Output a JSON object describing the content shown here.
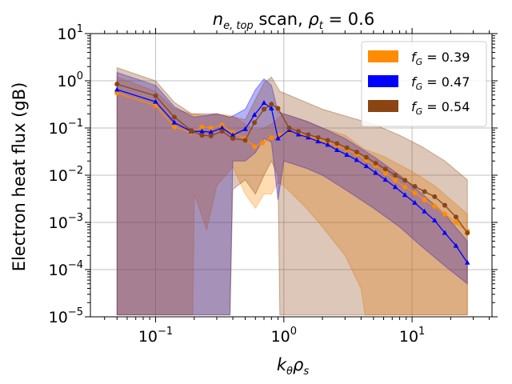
{
  "chart_data": {
    "type": "line",
    "title_prefix": "n",
    "title_sub": "e, top",
    "title_mid": " scan, ",
    "title_rho": "ρ",
    "title_rho_sub": "t",
    "title_suffix": " = 0.6",
    "xlabel_main": "k",
    "xlabel_sub1": "θ",
    "xlabel_mid": "ρ",
    "xlabel_sub2": "s",
    "ylabel": "Electron heat flux (gB)",
    "x_scale": "log",
    "y_scale": "log",
    "xlim": [
      0.031,
      42
    ],
    "ylim": [
      1e-05,
      10
    ],
    "grid": true,
    "legend_position": "top-right",
    "x_ticks": [
      {
        "value": 0.1,
        "base": "10",
        "exp": "−1"
      },
      {
        "value": 1,
        "base": "10",
        "exp": "0"
      },
      {
        "value": 10,
        "base": "10",
        "exp": "1"
      }
    ],
    "y_ticks": [
      {
        "value": 1e-05,
        "base": "10",
        "exp": "−5"
      },
      {
        "value": 0.0001,
        "base": "10",
        "exp": "−4"
      },
      {
        "value": 0.001,
        "base": "10",
        "exp": "−3"
      },
      {
        "value": 0.01,
        "base": "10",
        "exp": "−2"
      },
      {
        "value": 0.1,
        "base": "10",
        "exp": "−1"
      },
      {
        "value": 1,
        "base": "10",
        "exp": "0"
      },
      {
        "value": 10,
        "base": "10",
        "exp": "1"
      }
    ],
    "series": [
      {
        "name_prefix": "f",
        "name_sub": "G",
        "name_value": " = 0.39",
        "color": "#ff8c00",
        "marker": "circle",
        "points": [
          [
            0.05,
            0.55
          ],
          [
            0.1,
            0.3
          ],
          [
            0.14,
            0.105
          ],
          [
            0.19,
            0.08
          ],
          [
            0.23,
            0.105
          ],
          [
            0.27,
            0.1
          ],
          [
            0.33,
            0.115
          ],
          [
            0.4,
            0.08
          ],
          [
            0.5,
            0.06
          ],
          [
            0.59,
            0.04
          ],
          [
            0.68,
            0.048
          ],
          [
            0.8,
            0.062
          ],
          [
            0.92,
            0.07
          ],
          [
            1.1,
            0.085
          ],
          [
            1.3,
            0.076
          ],
          [
            1.55,
            0.066
          ],
          [
            1.85,
            0.058
          ],
          [
            2.2,
            0.05
          ],
          [
            2.6,
            0.042
          ],
          [
            3.1,
            0.035
          ],
          [
            3.7,
            0.028
          ],
          [
            4.4,
            0.021
          ],
          [
            5.2,
            0.016
          ],
          [
            6.2,
            0.011
          ],
          [
            7.4,
            0.0078
          ],
          [
            8.8,
            0.0056
          ],
          [
            10.5,
            0.0042
          ],
          [
            12.5,
            0.003
          ],
          [
            15,
            0.0022
          ],
          [
            18,
            0.0015
          ],
          [
            22,
            0.001
          ],
          [
            27,
            0.00065
          ]
        ],
        "band": [
          [
            0.05,
            1.1e-05,
            1.2
          ],
          [
            0.1,
            1.1e-05,
            0.6
          ],
          [
            0.14,
            1.1e-05,
            0.25
          ],
          [
            0.195,
            1.1e-05,
            0.2
          ],
          [
            0.2,
            0.004,
            0.2
          ],
          [
            0.25,
            0.0007,
            0.18
          ],
          [
            0.3,
            0.006,
            0.2
          ],
          [
            0.4,
            0.015,
            0.18
          ],
          [
            0.5,
            0.004,
            0.12
          ],
          [
            0.6,
            0.002,
            0.09
          ],
          [
            0.7,
            0.004,
            0.1
          ],
          [
            0.8,
            0.004,
            0.12
          ],
          [
            0.9,
            0.007,
            0.16
          ],
          [
            1.0,
            0.006,
            0.2
          ],
          [
            1.5,
            0.002,
            0.14
          ],
          [
            2.0,
            0.0008,
            0.1
          ],
          [
            3.0,
            0.0002,
            0.07
          ],
          [
            4.0,
            4e-05,
            0.04
          ],
          [
            4.3,
            1.1e-05,
            0.035
          ],
          [
            6.0,
            1.1e-05,
            0.025
          ],
          [
            10.0,
            1.1e-05,
            0.012
          ],
          [
            15.0,
            1.1e-05,
            0.006
          ],
          [
            27.0,
            1.1e-05,
            0.0015
          ]
        ]
      },
      {
        "name_prefix": "f",
        "name_sub": "G",
        "name_value": " = 0.47",
        "color": "#0000ff",
        "marker": "triangle",
        "points": [
          [
            0.05,
            0.65
          ],
          [
            0.1,
            0.36
          ],
          [
            0.14,
            0.13
          ],
          [
            0.19,
            0.085
          ],
          [
            0.23,
            0.085
          ],
          [
            0.27,
            0.082
          ],
          [
            0.33,
            0.1
          ],
          [
            0.4,
            0.07
          ],
          [
            0.5,
            0.095
          ],
          [
            0.59,
            0.19
          ],
          [
            0.7,
            0.34
          ],
          [
            0.8,
            0.26
          ],
          [
            0.9,
            0.06
          ],
          [
            1.1,
            0.09
          ],
          [
            1.3,
            0.073
          ],
          [
            1.55,
            0.063
          ],
          [
            1.85,
            0.052
          ],
          [
            2.2,
            0.044
          ],
          [
            2.6,
            0.034
          ],
          [
            3.1,
            0.027
          ],
          [
            3.7,
            0.021
          ],
          [
            4.4,
            0.0155
          ],
          [
            5.2,
            0.0112
          ],
          [
            6.2,
            0.008
          ],
          [
            7.4,
            0.0056
          ],
          [
            8.8,
            0.0038
          ],
          [
            10.5,
            0.0026
          ],
          [
            12.5,
            0.0017
          ],
          [
            15,
            0.0011
          ],
          [
            18,
            0.0006
          ],
          [
            22,
            0.00032
          ],
          [
            27,
            0.00014
          ]
        ],
        "band": [
          [
            0.05,
            1.1e-05,
            1.5
          ],
          [
            0.1,
            1.1e-05,
            0.8
          ],
          [
            0.14,
            1.1e-05,
            0.28
          ],
          [
            0.19,
            1.1e-05,
            0.18
          ],
          [
            0.2,
            1.1e-05,
            0.17
          ],
          [
            0.3,
            1.1e-05,
            0.2
          ],
          [
            0.38,
            1.1e-05,
            0.17
          ],
          [
            0.4,
            0.02,
            0.18
          ],
          [
            0.5,
            0.02,
            0.25
          ],
          [
            0.6,
            0.03,
            0.65
          ],
          [
            0.7,
            0.06,
            1.1
          ],
          [
            0.8,
            0.05,
            0.8
          ],
          [
            0.9,
            0.003,
            0.22
          ],
          [
            1.0,
            0.02,
            0.2
          ],
          [
            1.5,
            0.014,
            0.14
          ],
          [
            2.0,
            0.01,
            0.1
          ],
          [
            3.0,
            0.005,
            0.06
          ],
          [
            5.0,
            0.002,
            0.025
          ],
          [
            8.0,
            0.0008,
            0.01
          ],
          [
            12.0,
            0.0003,
            0.004
          ],
          [
            18.0,
            0.00012,
            0.0015
          ],
          [
            27.0,
            5e-05,
            0.0004
          ]
        ]
      },
      {
        "name_prefix": "f",
        "name_sub": "G",
        "name_value": " = 0.54",
        "color": "#8b4513",
        "marker": "circle",
        "points": [
          [
            0.05,
            0.85
          ],
          [
            0.1,
            0.48
          ],
          [
            0.14,
            0.17
          ],
          [
            0.19,
            0.088
          ],
          [
            0.23,
            0.07
          ],
          [
            0.27,
            0.068
          ],
          [
            0.33,
            0.085
          ],
          [
            0.4,
            0.06
          ],
          [
            0.5,
            0.055
          ],
          [
            0.59,
            0.13
          ],
          [
            0.7,
            0.25
          ],
          [
            0.8,
            0.32
          ],
          [
            0.9,
            0.26
          ],
          [
            1.1,
            0.1
          ],
          [
            1.3,
            0.085
          ],
          [
            1.55,
            0.072
          ],
          [
            1.85,
            0.063
          ],
          [
            2.2,
            0.055
          ],
          [
            2.6,
            0.047
          ],
          [
            3.1,
            0.038
          ],
          [
            3.7,
            0.031
          ],
          [
            4.4,
            0.024
          ],
          [
            5.2,
            0.018
          ],
          [
            6.2,
            0.0135
          ],
          [
            7.4,
            0.01
          ],
          [
            8.8,
            0.0078
          ],
          [
            10.5,
            0.0058
          ],
          [
            12.5,
            0.0045
          ],
          [
            15,
            0.0035
          ],
          [
            18,
            0.0023
          ],
          [
            22,
            0.0013
          ],
          [
            27,
            0.0006
          ]
        ],
        "band": [
          [
            0.05,
            1.1e-05,
            1.9
          ],
          [
            0.1,
            1.1e-05,
            1.0
          ],
          [
            0.14,
            1.1e-05,
            0.35
          ],
          [
            0.19,
            1.1e-05,
            0.2
          ],
          [
            0.2,
            1.1e-05,
            0.2
          ],
          [
            0.3,
            1.1e-05,
            0.2
          ],
          [
            0.38,
            1.1e-05,
            0.17
          ],
          [
            0.4,
            0.005,
            0.17
          ],
          [
            0.5,
            0.008,
            0.15
          ],
          [
            0.6,
            0.004,
            0.4
          ],
          [
            0.7,
            0.01,
            0.9
          ],
          [
            0.8,
            0.02,
            1.2
          ],
          [
            0.9,
            0.01,
            0.7
          ],
          [
            0.93,
            1.1e-05,
            0.6
          ],
          [
            1.2,
            1.1e-05,
            0.45
          ],
          [
            2.0,
            1.1e-05,
            0.25
          ],
          [
            3.0,
            1.1e-05,
            0.18
          ],
          [
            5.0,
            1.1e-05,
            0.12
          ],
          [
            8.0,
            1.1e-05,
            0.07
          ],
          [
            12.0,
            1.1e-05,
            0.04
          ],
          [
            18.0,
            1.1e-05,
            0.02
          ],
          [
            27.0,
            1.1e-05,
            0.008
          ]
        ]
      }
    ]
  }
}
